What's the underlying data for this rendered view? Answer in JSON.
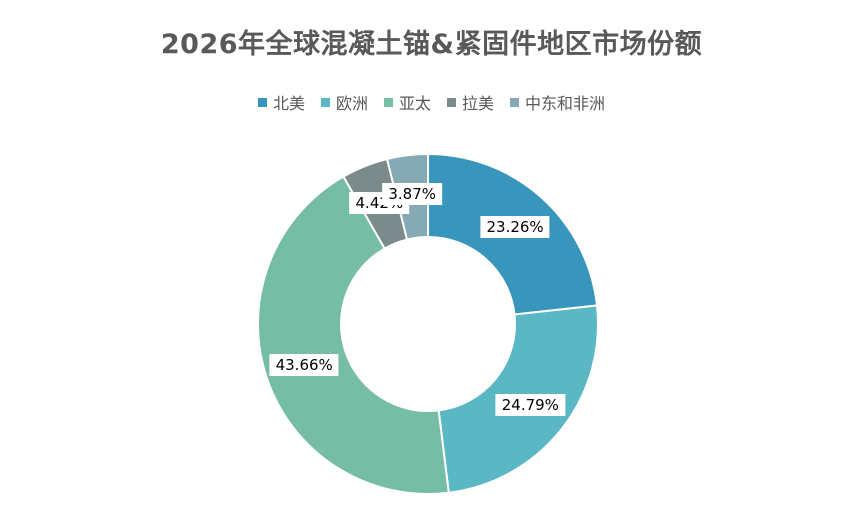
{
  "chart_data": {
    "type": "pie",
    "title": "2026年全球混凝土锚&紧固件地区市场份额",
    "categories": [
      "北美",
      "欧洲",
      "亚太",
      "拉美",
      "中东和非洲"
    ],
    "values": [
      23.26,
      24.79,
      43.66,
      4.42,
      3.87
    ],
    "value_labels": [
      "23.26%",
      "24.79%",
      "43.66%",
      "4.42%",
      "3.87%"
    ],
    "colors": [
      "#3896BC",
      "#5AB7C4",
      "#76BDA6",
      "#7B8B8B",
      "#85AAB5"
    ],
    "legend_position": "top",
    "donut": true
  }
}
